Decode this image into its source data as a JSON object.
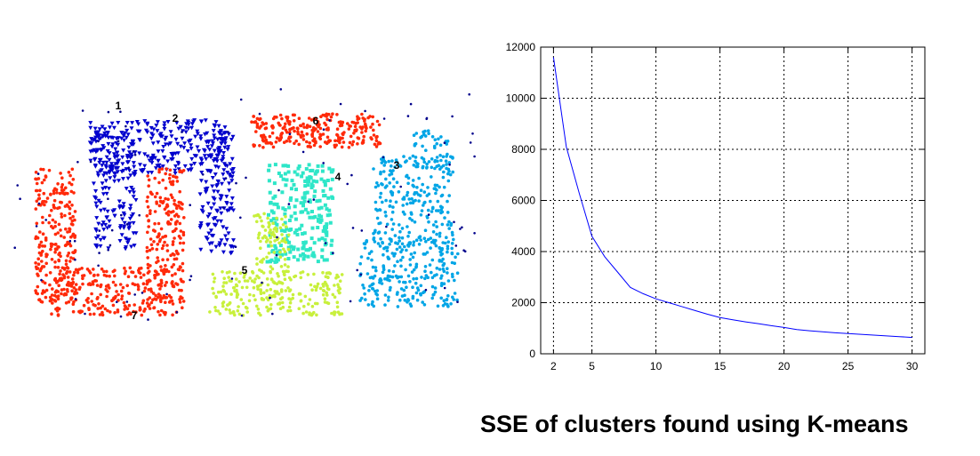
{
  "caption": "SSE of clusters found using K-means",
  "chart_data": [
    {
      "type": "scatter",
      "title": "",
      "xlabel": "",
      "ylabel": "",
      "grid": false,
      "clusters": [
        {
          "label": "1",
          "color": "#00008b"
        },
        {
          "label": "2",
          "color": "#0000cd"
        },
        {
          "label": "3",
          "color": "#00a5e6"
        },
        {
          "label": "4",
          "color": "#2ee6c8"
        },
        {
          "label": "5",
          "color": "#c8f03c"
        },
        {
          "label": "6",
          "color": "#ffa500"
        },
        {
          "label": "7",
          "color": "#ff2a0a"
        }
      ]
    },
    {
      "type": "line",
      "title": "",
      "xlabel": "",
      "ylabel": "",
      "grid": true,
      "xlim": [
        1,
        31
      ],
      "ylim": [
        0,
        12000
      ],
      "xticks": [
        2,
        5,
        10,
        15,
        20,
        25,
        30
      ],
      "yticks": [
        0,
        2000,
        4000,
        6000,
        8000,
        10000,
        12000
      ],
      "line_color": "#0000ff",
      "x": [
        2,
        3,
        4,
        5,
        6,
        7,
        8,
        9,
        10,
        11,
        12,
        13,
        14,
        15,
        16,
        17,
        18,
        19,
        20,
        21,
        22,
        23,
        24,
        25,
        26,
        27,
        28,
        29,
        30
      ],
      "y": [
        11600,
        8100,
        6300,
        4600,
        3800,
        3200,
        2600,
        2350,
        2150,
        2000,
        1850,
        1700,
        1550,
        1420,
        1330,
        1250,
        1180,
        1100,
        1030,
        950,
        900,
        860,
        820,
        790,
        760,
        730,
        700,
        670,
        640
      ]
    }
  ]
}
